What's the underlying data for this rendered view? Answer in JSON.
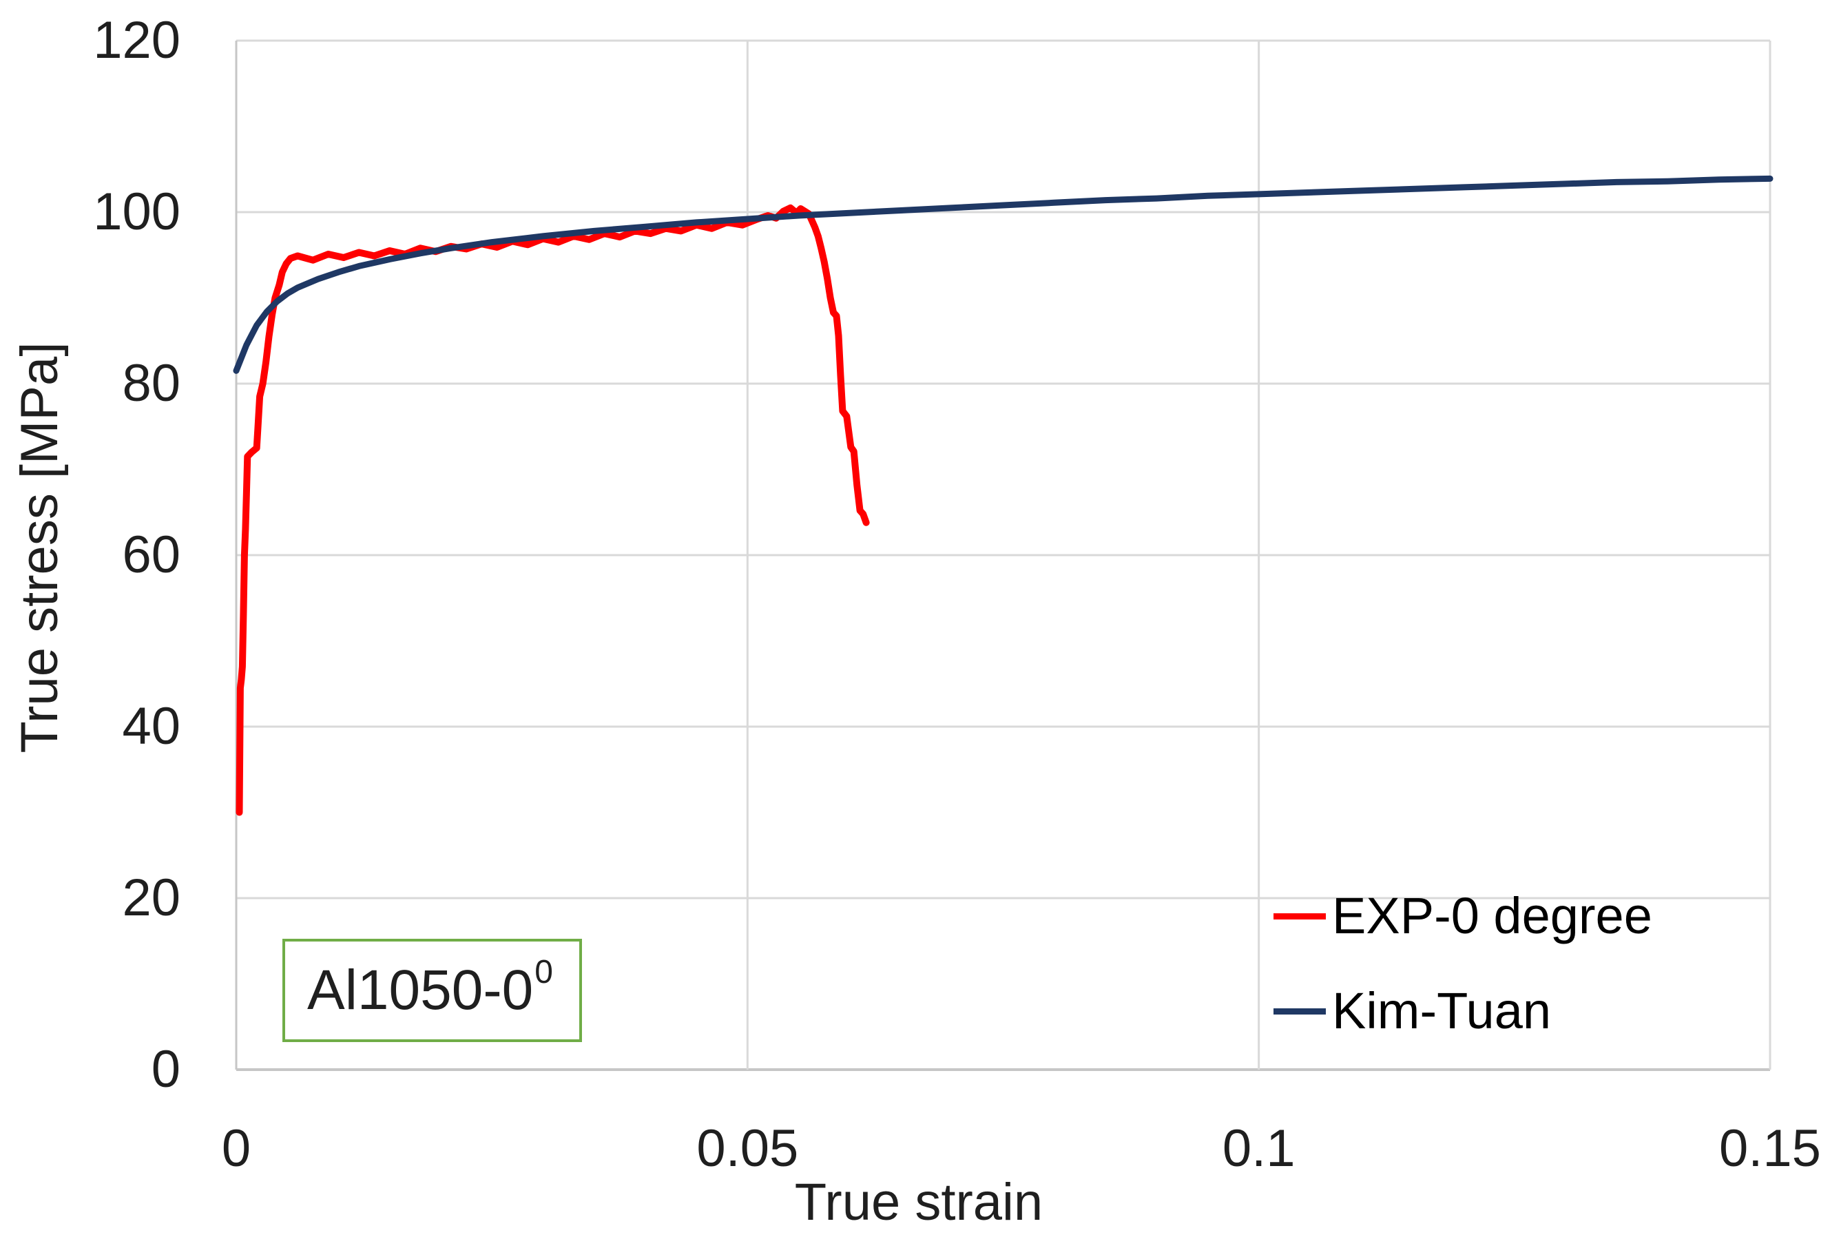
{
  "chart_data": {
    "type": "line",
    "title": "",
    "xlabel": "True strain",
    "ylabel": "True stress [MPa]",
    "xlim": [
      0,
      0.15
    ],
    "ylim": [
      0,
      120
    ],
    "xticks": [
      "0",
      "0.05",
      "0.1",
      "0.15"
    ],
    "xtick_values": [
      0,
      0.05,
      0.1,
      0.15
    ],
    "yticks": [
      "0",
      "20",
      "40",
      "60",
      "80",
      "100",
      "120"
    ],
    "ytick_values": [
      0,
      20,
      40,
      60,
      80,
      100,
      120
    ],
    "grid": true,
    "legend_position": "inside-bottom-right",
    "annotation": {
      "text": "Al1050-0",
      "superscript": "0",
      "border_color": "#70ad47"
    },
    "series": [
      {
        "name": "EXP-0 degree",
        "color": "#fe0000",
        "stroke_width": 10,
        "points": [
          [
            0.0003,
            30.0
          ],
          [
            0.0004,
            44.5
          ],
          [
            0.0005,
            45.5
          ],
          [
            0.0006,
            47.0
          ],
          [
            0.0007,
            53.0
          ],
          [
            0.0008,
            60.0
          ],
          [
            0.0009,
            63.0
          ],
          [
            0.001,
            67.0
          ],
          [
            0.0011,
            71.5
          ],
          [
            0.0015,
            72.0
          ],
          [
            0.002,
            72.5
          ],
          [
            0.0021,
            74.5
          ],
          [
            0.0023,
            78.5
          ],
          [
            0.0026,
            80.0
          ],
          [
            0.0029,
            82.5
          ],
          [
            0.0032,
            85.5
          ],
          [
            0.0035,
            88.0
          ],
          [
            0.0038,
            90.0
          ],
          [
            0.0042,
            91.5
          ],
          [
            0.0045,
            93.0
          ],
          [
            0.0049,
            94.0
          ],
          [
            0.0053,
            94.6
          ],
          [
            0.006,
            94.9
          ],
          [
            0.0075,
            94.4
          ],
          [
            0.009,
            95.1
          ],
          [
            0.0105,
            94.7
          ],
          [
            0.012,
            95.3
          ],
          [
            0.0135,
            94.9
          ],
          [
            0.015,
            95.5
          ],
          [
            0.0165,
            95.1
          ],
          [
            0.018,
            95.8
          ],
          [
            0.0195,
            95.4
          ],
          [
            0.021,
            96.0
          ],
          [
            0.0225,
            95.7
          ],
          [
            0.024,
            96.3
          ],
          [
            0.0255,
            95.9
          ],
          [
            0.027,
            96.6
          ],
          [
            0.0285,
            96.2
          ],
          [
            0.03,
            96.9
          ],
          [
            0.0315,
            96.5
          ],
          [
            0.033,
            97.2
          ],
          [
            0.0345,
            96.8
          ],
          [
            0.036,
            97.5
          ],
          [
            0.0375,
            97.1
          ],
          [
            0.039,
            97.8
          ],
          [
            0.0405,
            97.5
          ],
          [
            0.042,
            98.1
          ],
          [
            0.0435,
            97.8
          ],
          [
            0.045,
            98.5
          ],
          [
            0.0465,
            98.1
          ],
          [
            0.048,
            98.8
          ],
          [
            0.0495,
            98.5
          ],
          [
            0.051,
            99.2
          ],
          [
            0.052,
            99.6
          ],
          [
            0.0528,
            99.3
          ],
          [
            0.0535,
            100.1
          ],
          [
            0.0542,
            100.5
          ],
          [
            0.0548,
            99.9
          ],
          [
            0.0552,
            100.4
          ],
          [
            0.056,
            99.8
          ],
          [
            0.0563,
            99.0
          ],
          [
            0.0566,
            98.2
          ],
          [
            0.0569,
            97.2
          ],
          [
            0.0572,
            95.8
          ],
          [
            0.0575,
            94.2
          ],
          [
            0.0578,
            92.3
          ],
          [
            0.0581,
            90.0
          ],
          [
            0.0584,
            88.3
          ],
          [
            0.0587,
            87.9
          ],
          [
            0.0589,
            85.6
          ],
          [
            0.0591,
            81.0
          ],
          [
            0.0593,
            76.8
          ],
          [
            0.0597,
            76.2
          ],
          [
            0.0601,
            72.6
          ],
          [
            0.0604,
            72.1
          ],
          [
            0.0607,
            68.2
          ],
          [
            0.061,
            65.2
          ],
          [
            0.0613,
            64.8
          ],
          [
            0.0616,
            63.8
          ]
        ]
      },
      {
        "name": "Kim-Tuan",
        "color": "#1f3864",
        "stroke_width": 9,
        "points": [
          [
            0.0,
            81.5
          ],
          [
            0.001,
            84.5
          ],
          [
            0.002,
            86.8
          ],
          [
            0.003,
            88.4
          ],
          [
            0.004,
            89.6
          ],
          [
            0.005,
            90.5
          ],
          [
            0.006,
            91.2
          ],
          [
            0.008,
            92.2
          ],
          [
            0.01,
            93.0
          ],
          [
            0.012,
            93.7
          ],
          [
            0.015,
            94.5
          ],
          [
            0.018,
            95.2
          ],
          [
            0.021,
            95.8
          ],
          [
            0.025,
            96.5
          ],
          [
            0.03,
            97.2
          ],
          [
            0.035,
            97.8
          ],
          [
            0.04,
            98.3
          ],
          [
            0.045,
            98.8
          ],
          [
            0.05,
            99.2
          ],
          [
            0.055,
            99.6
          ],
          [
            0.06,
            99.9
          ],
          [
            0.065,
            100.2
          ],
          [
            0.07,
            100.5
          ],
          [
            0.075,
            100.8
          ],
          [
            0.08,
            101.1
          ],
          [
            0.085,
            101.4
          ],
          [
            0.09,
            101.6
          ],
          [
            0.095,
            101.9
          ],
          [
            0.1,
            102.1
          ],
          [
            0.105,
            102.3
          ],
          [
            0.11,
            102.5
          ],
          [
            0.115,
            102.7
          ],
          [
            0.12,
            102.9
          ],
          [
            0.125,
            103.1
          ],
          [
            0.13,
            103.3
          ],
          [
            0.135,
            103.5
          ],
          [
            0.14,
            103.6
          ],
          [
            0.145,
            103.8
          ],
          [
            0.15,
            103.9
          ]
        ]
      }
    ]
  },
  "legend": {
    "items": [
      {
        "label": "EXP-0 degree",
        "color": "#fe0000"
      },
      {
        "label": "Kim-Tuan",
        "color": "#1f3864"
      }
    ]
  },
  "colors": {
    "background": "#ffffff",
    "gridline": "#d9d9d9",
    "axis_line": "#c6c6c6",
    "text": "#1f1f1f",
    "annotation_border": "#70ad47"
  }
}
